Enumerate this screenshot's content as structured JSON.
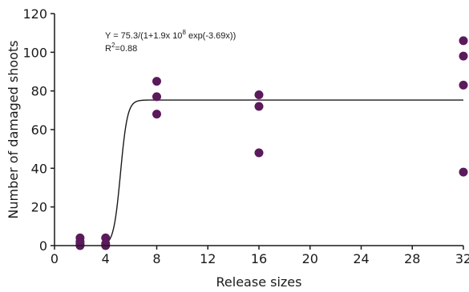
{
  "chart_data": {
    "type": "scatter",
    "title": "",
    "xlabel": "Release sizes",
    "ylabel": "Number of damaged shoots",
    "xlim": [
      0,
      32
    ],
    "ylim": [
      0,
      120
    ],
    "xticks": [
      0,
      4,
      8,
      12,
      16,
      20,
      24,
      28,
      32
    ],
    "yticks": [
      0,
      20,
      40,
      60,
      80,
      100,
      120
    ],
    "grid": false,
    "legend": "none",
    "point_color": "#5b1a5b",
    "line_color": "#1a1a1a",
    "points": [
      {
        "x": 2,
        "y": 0
      },
      {
        "x": 2,
        "y": 1
      },
      {
        "x": 2,
        "y": 2
      },
      {
        "x": 2,
        "y": 4
      },
      {
        "x": 4,
        "y": 0
      },
      {
        "x": 4,
        "y": 1
      },
      {
        "x": 4,
        "y": 4
      },
      {
        "x": 8,
        "y": 68
      },
      {
        "x": 8,
        "y": 77
      },
      {
        "x": 8,
        "y": 85
      },
      {
        "x": 16,
        "y": 48
      },
      {
        "x": 16,
        "y": 72
      },
      {
        "x": 16,
        "y": 78
      },
      {
        "x": 32,
        "y": 38
      },
      {
        "x": 32,
        "y": 83
      },
      {
        "x": 32,
        "y": 98
      },
      {
        "x": 32,
        "y": 106
      }
    ],
    "fit": {
      "asymptote": 75.3,
      "coef": 190000000.0,
      "rate": 3.69,
      "x_start": 3.8,
      "x_end": 32
    },
    "annotation": {
      "equation_prefix": "Y = 75.3/(1+1.9x 10",
      "equation_exponent": "8",
      "equation_suffix": " exp(-3.69x))",
      "r2_prefix": "R",
      "r2_exponent": "2",
      "r2_suffix": "=0.88"
    }
  }
}
